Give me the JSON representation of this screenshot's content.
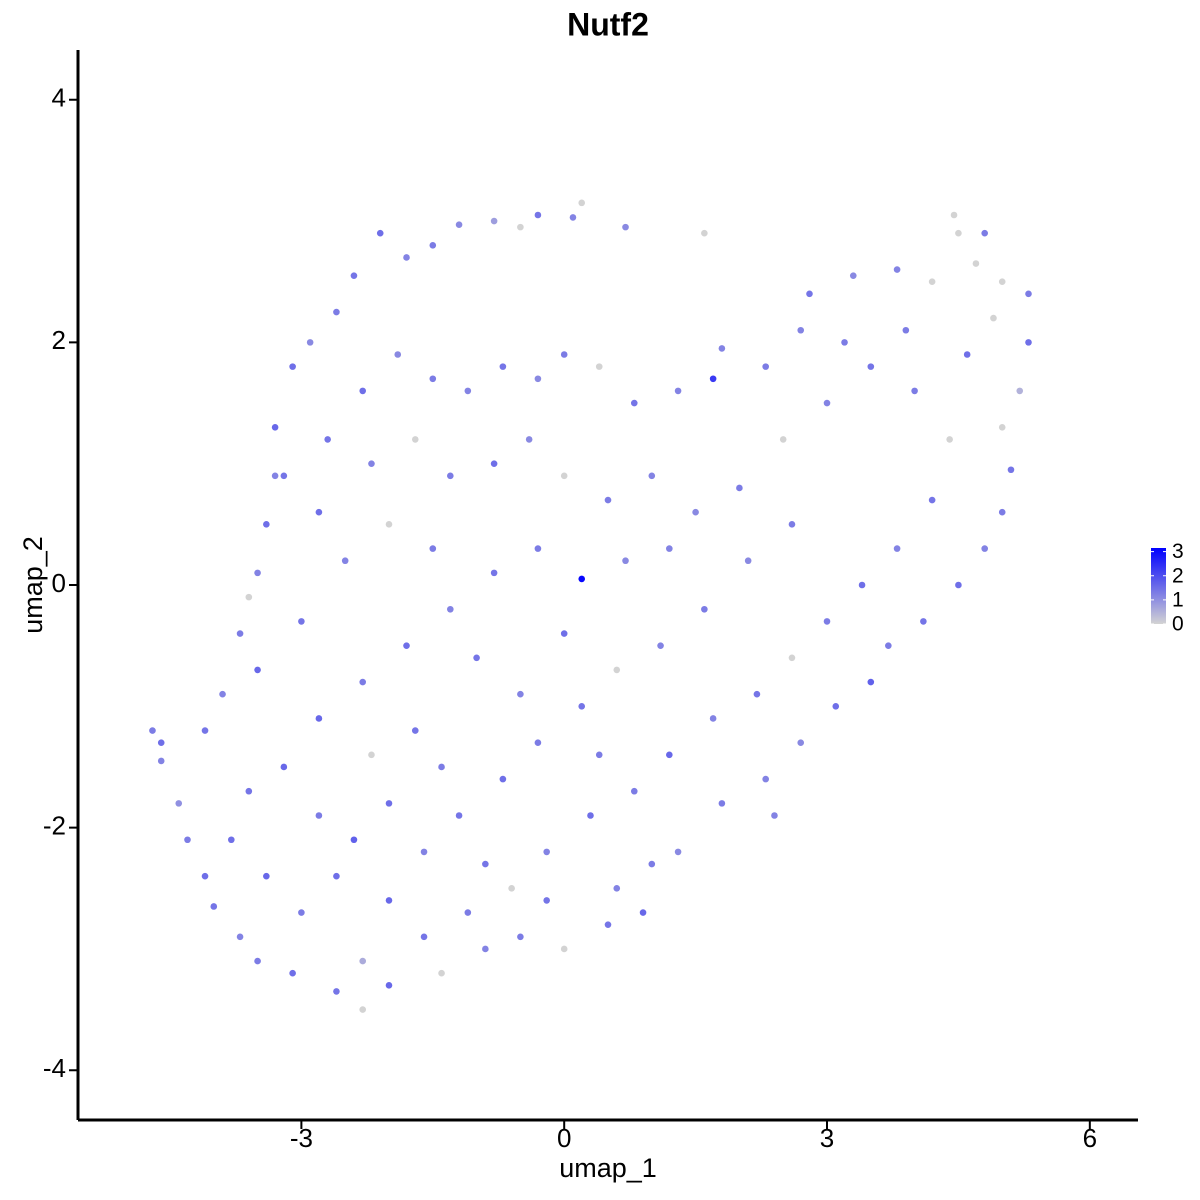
{
  "chart_data": {
    "type": "scatter",
    "title": "Nutf2",
    "x_label": "umap_1",
    "y_label": "umap_2",
    "xlim": [
      -5.55,
      6.55
    ],
    "ylim": [
      -4.41,
      4.41
    ],
    "xticks": [
      -3,
      0,
      3,
      6
    ],
    "yticks": [
      -4,
      -2,
      0,
      2,
      4
    ],
    "color_low": "#d3d3d3",
    "color_high": "#0000ff",
    "color_range": [
      0,
      3.15
    ],
    "color_ticks": [
      0,
      1,
      2,
      3
    ],
    "x": [
      -2.1,
      -1.8,
      -1.5,
      -1.2,
      -0.8,
      -0.5,
      -0.3,
      0.1,
      0.2,
      0.7,
      1.6,
      -2.4,
      -2.6,
      -2.9,
      -3.1,
      -3.3,
      -3.2,
      -3.4,
      -3.5,
      -3.6,
      -3.7,
      -3.5,
      -3.9,
      -4.1,
      -4.7,
      -4.6,
      -4.6,
      -4.4,
      -4.3,
      -4.1,
      -4.0,
      -3.7,
      -3.5,
      -3.1,
      -2.6,
      -2.3,
      -2.0,
      -2.3,
      -1.4,
      -0.9,
      -0.5,
      0.0,
      0.5,
      0.9,
      0.6,
      1.3,
      1.8,
      2.3,
      2.7,
      3.1,
      3.5,
      3.7,
      4.1,
      4.5,
      4.8,
      5.0,
      5.1,
      5.0,
      5.2,
      5.3,
      5.3,
      5.0,
      4.7,
      4.5,
      4.45,
      4.8,
      4.2,
      3.8,
      3.3,
      2.8,
      2.7,
      2.3,
      1.8,
      1.7,
      1.3,
      0.8,
      0.4,
      0.0,
      -0.3,
      -0.7,
      -1.1,
      -1.5,
      -1.9,
      -2.3,
      -2.7,
      -2.2,
      -1.7,
      -1.3,
      -0.8,
      -0.4,
      0.0,
      0.5,
      1.0,
      1.5,
      2.0,
      2.5,
      3.0,
      3.5,
      4.0,
      4.4,
      4.2,
      3.8,
      3.4,
      3.0,
      2.6,
      2.2,
      1.7,
      1.2,
      0.8,
      0.3,
      -0.2,
      -0.6,
      -1.1,
      -1.6,
      -2.0,
      -2.6,
      -3.0,
      -3.4,
      -3.8,
      -3.6,
      -3.2,
      -2.8,
      -2.4,
      -2.0,
      -1.6,
      -1.2,
      -0.7,
      -0.3,
      0.2,
      0.6,
      1.1,
      1.6,
      2.1,
      2.6,
      1.2,
      0.7,
      0.2,
      -0.3,
      -0.8,
      -1.3,
      -1.8,
      -2.3,
      -2.8,
      -3.0,
      -2.5,
      -2.0,
      -1.5,
      -1.0,
      -0.5,
      0.0,
      0.4,
      -1.7,
      -2.2,
      -1.4,
      -0.9,
      -3.3,
      -2.8,
      3.9,
      4.6,
      4.9,
      3.2,
      2.4,
      1.0,
      -0.2
    ],
    "y": [
      2.9,
      2.7,
      2.8,
      2.97,
      3.0,
      2.95,
      3.05,
      3.03,
      3.15,
      2.95,
      2.9,
      2.55,
      2.25,
      2.0,
      1.8,
      1.3,
      0.9,
      0.5,
      0.1,
      -0.1,
      -0.4,
      -0.7,
      -0.9,
      -1.2,
      -1.2,
      -1.3,
      -1.45,
      -1.8,
      -2.1,
      -2.4,
      -2.65,
      -2.9,
      -3.1,
      -3.2,
      -3.35,
      -3.5,
      -3.3,
      -3.1,
      -3.2,
      -3.0,
      -2.9,
      -3.0,
      -2.8,
      -2.7,
      -2.5,
      -2.2,
      -1.8,
      -1.6,
      -1.3,
      -1.0,
      -0.8,
      -0.5,
      -0.3,
      0.0,
      0.3,
      0.6,
      0.95,
      1.3,
      1.6,
      2.0,
      2.4,
      2.5,
      2.65,
      2.9,
      3.05,
      2.9,
      2.5,
      2.6,
      2.55,
      2.4,
      2.1,
      1.8,
      1.95,
      1.7,
      1.6,
      1.5,
      1.8,
      1.9,
      1.7,
      1.8,
      1.6,
      1.7,
      1.9,
      1.6,
      1.2,
      1.0,
      1.2,
      0.9,
      1.0,
      1.2,
      0.9,
      0.7,
      0.9,
      0.6,
      0.8,
      1.2,
      1.5,
      1.8,
      1.6,
      1.2,
      0.7,
      0.3,
      0.0,
      -0.3,
      -0.6,
      -0.9,
      -1.1,
      -1.4,
      -1.7,
      -1.9,
      -2.2,
      -2.5,
      -2.7,
      -2.9,
      -2.6,
      -2.4,
      -2.7,
      -2.4,
      -2.1,
      -1.7,
      -1.5,
      -1.9,
      -2.1,
      -1.8,
      -2.2,
      -1.9,
      -1.6,
      -1.3,
      -1.0,
      -0.7,
      -0.5,
      -0.2,
      0.2,
      0.5,
      0.3,
      0.2,
      0.05,
      0.3,
      0.1,
      -0.2,
      -0.5,
      -0.8,
      -1.1,
      -0.3,
      0.2,
      0.5,
      0.3,
      -0.6,
      -0.9,
      -0.4,
      -1.4,
      -1.2,
      -1.4,
      -1.5,
      -2.3,
      0.9,
      0.6,
      2.1,
      1.9,
      2.2,
      2.0,
      -1.9,
      -2.3,
      -2.6
    ],
    "values": [
      1.5,
      1.2,
      1.3,
      1.1,
      0.8,
      0,
      1.4,
      1.2,
      0,
      1.1,
      0,
      1.4,
      1.3,
      1.1,
      1.5,
      1.6,
      1.4,
      1.5,
      1.2,
      0,
      1.3,
      1.6,
      1.2,
      1.4,
      1.3,
      1.5,
      1.2,
      1.0,
      1.3,
      1.5,
      1.4,
      1.2,
      1.3,
      1.5,
      1.4,
      0,
      1.6,
      0.6,
      0,
      1.2,
      1.3,
      0,
      1.4,
      1.6,
      1.2,
      1.1,
      1.3,
      1.2,
      1.1,
      1.5,
      1.7,
      1.3,
      1.4,
      1.5,
      1.2,
      1.3,
      1.4,
      0,
      0.5,
      1.5,
      1.3,
      0,
      0,
      0,
      0,
      1.3,
      0,
      1.2,
      1.1,
      1.4,
      1.2,
      1.3,
      1.2,
      2.3,
      1.2,
      1.4,
      0,
      1.3,
      1.1,
      1.4,
      1.2,
      1.3,
      1.1,
      1.5,
      1.4,
      1.2,
      0,
      1.3,
      1.5,
      1.1,
      0,
      1.3,
      1.2,
      1.1,
      1.3,
      0,
      1.2,
      1.4,
      1.3,
      0,
      1.4,
      1.2,
      1.5,
      1.3,
      0,
      1.4,
      1.2,
      1.6,
      1.3,
      1.5,
      1.2,
      0,
      1.3,
      1.4,
      1.6,
      1.5,
      1.3,
      1.6,
      1.5,
      1.4,
      1.6,
      1.3,
      1.7,
      1.5,
      1.2,
      1.4,
      1.5,
      1.3,
      1.4,
      0,
      1.2,
      1.3,
      1.1,
      1.3,
      1.2,
      1.1,
      3.05,
      1.3,
      1.4,
      1.2,
      1.5,
      1.3,
      1.6,
      1.4,
      1.2,
      0,
      1.3,
      1.4,
      1.2,
      1.5,
      1.3,
      1.4,
      0,
      1.3,
      1.4,
      1.2,
      1.5,
      1.3,
      1.5,
      0,
      1.3,
      1.2,
      1.3,
      1.4
    ]
  }
}
